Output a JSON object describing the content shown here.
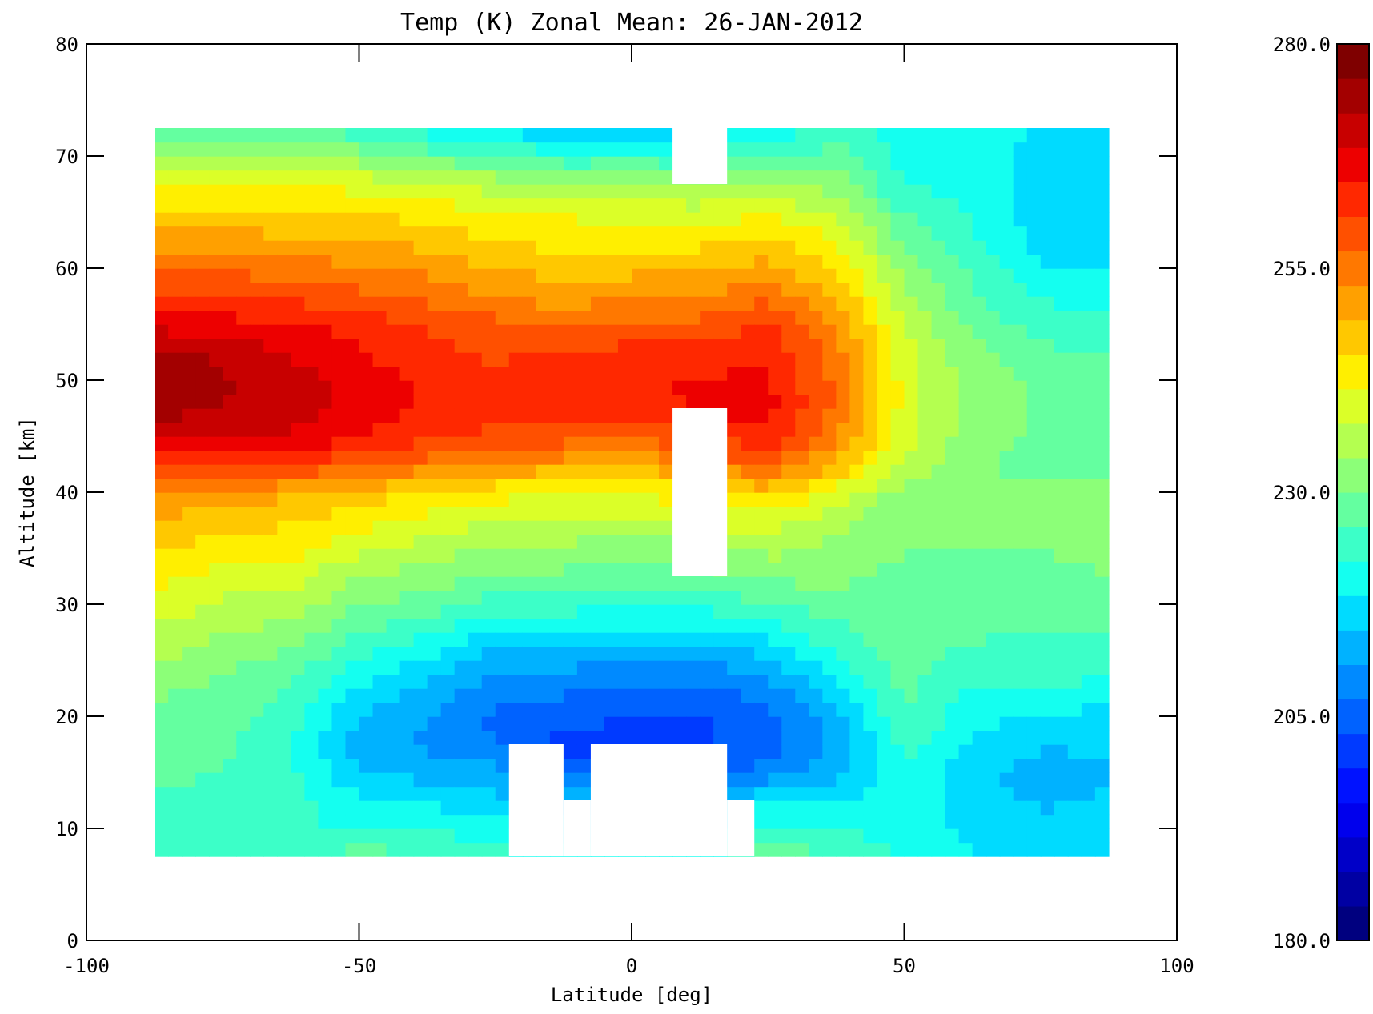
{
  "chart_data": {
    "type": "heatmap",
    "title": "Temp (K) Zonal Mean: 26-JAN-2012",
    "xlabel": "Latitude [deg]",
    "ylabel": "Altitude [km]",
    "xlim": [
      -100,
      100
    ],
    "ylim": [
      0,
      80
    ],
    "x_ticks": [
      -100,
      -50,
      0,
      50,
      100
    ],
    "x_tick_labels": [
      "-100",
      "-50",
      "0",
      "50",
      "100"
    ],
    "y_ticks": [
      0,
      10,
      20,
      30,
      40,
      50,
      60,
      70,
      80
    ],
    "y_tick_labels": [
      "0",
      "10",
      "20",
      "30",
      "40",
      "50",
      "60",
      "70",
      "80"
    ],
    "colorbar": {
      "min": 180.0,
      "max": 280.0,
      "ticks": [
        180.0,
        205.0,
        230.0,
        255.0,
        280.0
      ],
      "tick_labels": [
        "180.0",
        "205.0",
        "230.0",
        "255.0",
        "280.0"
      ],
      "colors": [
        "#00007f",
        "#0000a3",
        "#0000c8",
        "#0000ed",
        "#0012ff",
        "#003aff",
        "#0062ff",
        "#008aff",
        "#00b2ff",
        "#00dbff",
        "#14fff0",
        "#3cffc8",
        "#64ffa0",
        "#8cff78",
        "#b4ff50",
        "#dbff28",
        "#ffef00",
        "#ffc800",
        "#ffa000",
        "#ff7800",
        "#ff5000",
        "#ff2800",
        "#ed0000",
        "#c80000",
        "#a30000",
        "#7f0000"
      ]
    },
    "data_extent": {
      "lat": [
        -87.5,
        87.5
      ],
      "alt": [
        7.5,
        72.5
      ]
    },
    "latitudes": [
      -87.5,
      -75,
      -62.5,
      -50,
      -37.5,
      -25,
      -12.5,
      0,
      12.5,
      25,
      37.5,
      50,
      62.5,
      75,
      87.5
    ],
    "altitudes": [
      7.5,
      10,
      12.5,
      15,
      17.5,
      20,
      22.5,
      25,
      27.5,
      30,
      32.5,
      35,
      37.5,
      40,
      42.5,
      45,
      47.5,
      50,
      52.5,
      55,
      57.5,
      60,
      62.5,
      65,
      67.5,
      70,
      72.5
    ],
    "temperature_columns": [
      {
        "lat": -87.5,
        "t": [
          224,
          225,
          226,
          227,
          228,
          229,
          231,
          234,
          237,
          240,
          243,
          246,
          249,
          253,
          261,
          270,
          274,
          276,
          274,
          267,
          262,
          256,
          251,
          246,
          242,
          234,
          227
        ]
      },
      {
        "lat": -75,
        "t": [
          224,
          224,
          225,
          226,
          227,
          228,
          229,
          231,
          234,
          237,
          240,
          244,
          247,
          252,
          262,
          270,
          272,
          273,
          271,
          266,
          261,
          256,
          251,
          246,
          242,
          234,
          226
        ]
      },
      {
        "lat": -62.5,
        "t": [
          223,
          223,
          224,
          223,
          222,
          224,
          226,
          229,
          232,
          236,
          239,
          243,
          246,
          250,
          261,
          268,
          270,
          270,
          268,
          265,
          260,
          255,
          250,
          246,
          241,
          232,
          225
        ]
      },
      {
        "lat": -50,
        "t": [
          229,
          222,
          219,
          215,
          213,
          215,
          218,
          222,
          226,
          230,
          234,
          239,
          243,
          248,
          258,
          265,
          267,
          267,
          265,
          263,
          258,
          254,
          249,
          245,
          240,
          232,
          224
        ]
      },
      {
        "lat": -37.5,
        "t": [
          226,
          222,
          218,
          213,
          210,
          211,
          214,
          218,
          223,
          228,
          232,
          236,
          240,
          245,
          255,
          262,
          264,
          264,
          262,
          260,
          256,
          252,
          248,
          244,
          238,
          228,
          220
        ]
      },
      {
        "lat": -25,
        "t": [
          224,
          220,
          216,
          212,
          207,
          206,
          208,
          212,
          218,
          224,
          229,
          233,
          238,
          243,
          252,
          260,
          262,
          262,
          260,
          258,
          253,
          249,
          245,
          241,
          236,
          227,
          218
        ]
      },
      {
        "lat": -12.5,
        "t": [
          221,
          217,
          213,
          205,
          202,
          204,
          208,
          212,
          218,
          224,
          229,
          233,
          237,
          242,
          251,
          259,
          262,
          263,
          261,
          257,
          251,
          248,
          244,
          241,
          235,
          223,
          213
        ]
      },
      {
        "lat": 0,
        "t": [
          221,
          216,
          212,
          206,
          202,
          203,
          206,
          211,
          217,
          223,
          228,
          232,
          237,
          242,
          250,
          258,
          263,
          264,
          262,
          258,
          253,
          248,
          244,
          240,
          234,
          224,
          216
        ]
      },
      {
        "lat": 12.5,
        "t": [
          221,
          216,
          212,
          206,
          202,
          203,
          206,
          211,
          217,
          223,
          228,
          233,
          238,
          244,
          253,
          261,
          265,
          265,
          263,
          258,
          253,
          249,
          244,
          239,
          233,
          223,
          215
        ]
      },
      {
        "lat": 25,
        "t": [
          229,
          223,
          218,
          208,
          205,
          206,
          209,
          214,
          220,
          226,
          231,
          235,
          240,
          247,
          258,
          264,
          266,
          265,
          264,
          261,
          256,
          251,
          246,
          241,
          235,
          226,
          218
        ]
      },
      {
        "lat": 37.5,
        "t": [
          226,
          222,
          218,
          213,
          211,
          213,
          217,
          221,
          225,
          228,
          231,
          233,
          235,
          240,
          249,
          254,
          256,
          256,
          255,
          253,
          249,
          245,
          242,
          237,
          232,
          228,
          224
        ]
      },
      {
        "lat": 50,
        "t": [
          222,
          221,
          221,
          222,
          224,
          226,
          227,
          228,
          229,
          230,
          229,
          230,
          230,
          232,
          237,
          239,
          240,
          240,
          239,
          237,
          235,
          232,
          229,
          226,
          222,
          221,
          220
        ]
      },
      {
        "lat": 62.5,
        "t": [
          219,
          217,
          216,
          215,
          218,
          220,
          222,
          224,
          227,
          229,
          230,
          230,
          231,
          231,
          231,
          232,
          232,
          232,
          231,
          229,
          227,
          225,
          223,
          222,
          221,
          221,
          220
        ]
      },
      {
        "lat": 75,
        "t": [
          217,
          216,
          214,
          213,
          215,
          218,
          223,
          225,
          226,
          227,
          229,
          230,
          232,
          231,
          227,
          229,
          230,
          229,
          227,
          224,
          222,
          219,
          217,
          216,
          216,
          217,
          218
        ]
      },
      {
        "lat": 87.5,
        "t": [
          217,
          216,
          215,
          214,
          215,
          217,
          221,
          224,
          226,
          228,
          230,
          231,
          232,
          231,
          229,
          228,
          228,
          227,
          226,
          224,
          221,
          218,
          216,
          215,
          215,
          215,
          216
        ]
      }
    ],
    "missing_regions": [
      {
        "lat": [
          -22.5,
          -12.5
        ],
        "alt": [
          7.5,
          17.5
        ]
      },
      {
        "lat": [
          -12.5,
          -7.5
        ],
        "alt": [
          7.5,
          12.5
        ]
      },
      {
        "lat": [
          -7.5,
          17.5
        ],
        "alt": [
          7.5,
          17.5
        ]
      },
      {
        "lat": [
          17.5,
          22.5
        ],
        "alt": [
          7.5,
          12.5
        ]
      },
      {
        "lat": [
          7.5,
          17.5
        ],
        "alt": [
          32.5,
          47.5
        ]
      },
      {
        "lat": [
          7.5,
          17.5
        ],
        "alt": [
          67.5,
          72.5
        ]
      }
    ]
  }
}
